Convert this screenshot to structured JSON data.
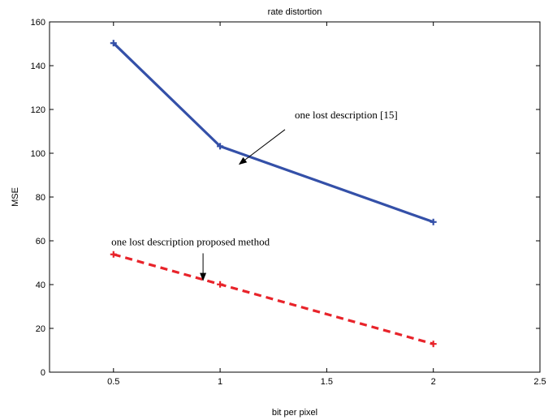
{
  "chart_data": {
    "type": "line",
    "title": "rate distortion",
    "xlabel": "bit per pixel",
    "ylabel": "MSE",
    "xlim": [
      0.2,
      2.5
    ],
    "ylim": [
      0,
      160
    ],
    "xticks": [
      0.5,
      1,
      1.5,
      2,
      2.5
    ],
    "yticks": [
      0,
      20,
      40,
      60,
      80,
      100,
      120,
      140,
      160
    ],
    "xtick_labels": [
      "0.5",
      "1",
      "1.5",
      "2",
      "2.5"
    ],
    "ytick_labels": [
      "0",
      "20",
      "40",
      "60",
      "80",
      "100",
      "120",
      "140",
      "160"
    ],
    "grid": false,
    "series": [
      {
        "values": [
          {
            "x": 0.5,
            "y": 150.3
          },
          {
            "x": 1,
            "y": 103.2
          },
          {
            "x": 2,
            "y": 68.6
          }
        ],
        "color": "#3450a8",
        "line_style": "solid",
        "marker": "plus"
      },
      {
        "values": [
          {
            "x": 0.5,
            "y": 53.8
          },
          {
            "x": 1,
            "y": 40.1
          },
          {
            "x": 2,
            "y": 12.9
          }
        ],
        "color": "#e8232a",
        "line_style": "dashed",
        "marker": "plus"
      }
    ],
    "annotations": [
      {
        "text": "one lost description [15]",
        "x": 1.35,
        "y": 116,
        "arrow_to": {
          "x": 1.09,
          "y": 95
        }
      },
      {
        "text": "one lost description proposed method",
        "x": 0.49,
        "y": 58,
        "arrow_to": {
          "x": 0.92,
          "y": 42
        }
      }
    ]
  }
}
